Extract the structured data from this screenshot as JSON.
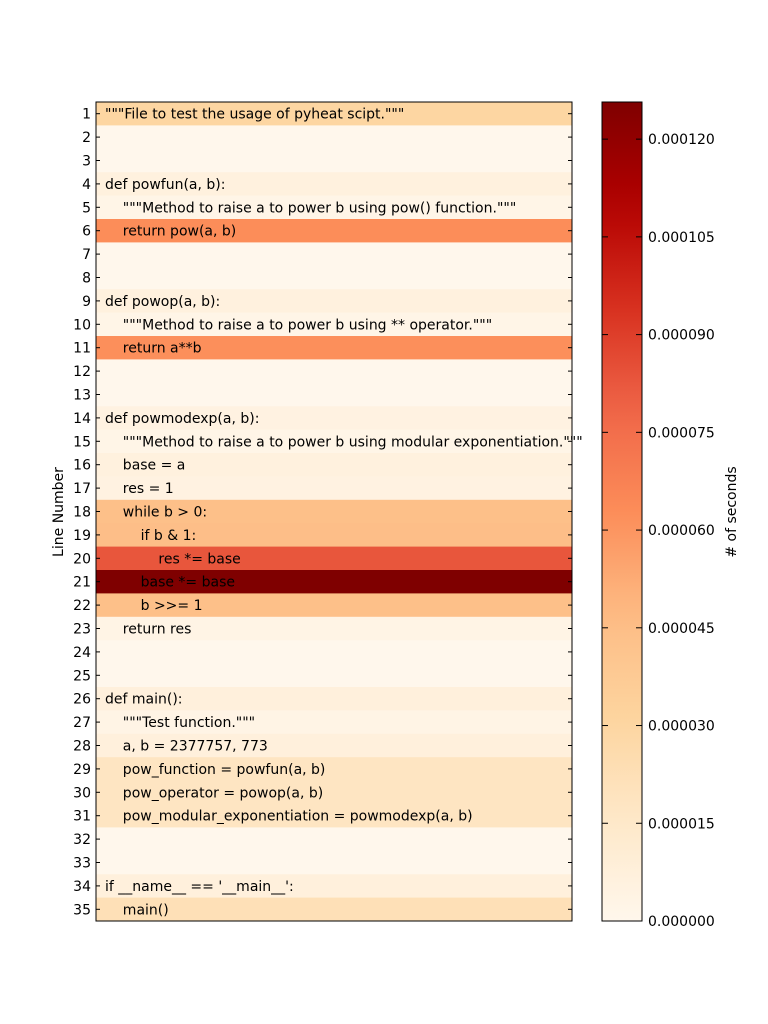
{
  "chart_data": {
    "type": "heatmap",
    "title": "",
    "ylabel": "Line Number",
    "colorbar_label": "# of seconds",
    "colormap": [
      "#fff7ec",
      "#fee8c8",
      "#fdd49e",
      "#fdbb84",
      "#fc8d59",
      "#ef6548",
      "#d7301f",
      "#b30000",
      "#7f0000"
    ],
    "clim": [
      0,
      0.0001257
    ],
    "colorbar_ticks": [
      "0.000000",
      "0.000015",
      "0.000030",
      "0.000045",
      "0.000060",
      "0.000075",
      "0.000090",
      "0.000105",
      "0.000120"
    ],
    "colorbar_tick_values": [
      0,
      1.5e-05,
      3e-05,
      4.5e-05,
      6e-05,
      7.5e-05,
      9e-05,
      0.000105,
      0.00012
    ],
    "rows": [
      {
        "line": 1,
        "code": "\"\"\"File to test the usage of pyheat scipt.\"\"\"",
        "value": 3e-05
      },
      {
        "line": 2,
        "code": "",
        "value": 0
      },
      {
        "line": 3,
        "code": "",
        "value": 0
      },
      {
        "line": 4,
        "code": "def powfun(a, b):",
        "value": 6e-06
      },
      {
        "line": 5,
        "code": "    \"\"\"Method to raise a to power b using pow() function.\"\"\"",
        "value": 2e-06
      },
      {
        "line": 6,
        "code": "    return pow(a, b)",
        "value": 6.3e-05
      },
      {
        "line": 7,
        "code": "",
        "value": 0
      },
      {
        "line": 8,
        "code": "",
        "value": 0
      },
      {
        "line": 9,
        "code": "def powop(a, b):",
        "value": 6e-06
      },
      {
        "line": 10,
        "code": "    \"\"\"Method to raise a to power b using ** operator.\"\"\"",
        "value": 2e-06
      },
      {
        "line": 11,
        "code": "    return a**b",
        "value": 6.2e-05
      },
      {
        "line": 12,
        "code": "",
        "value": 0
      },
      {
        "line": 13,
        "code": "",
        "value": 0
      },
      {
        "line": 14,
        "code": "def powmodexp(a, b):",
        "value": 5e-06
      },
      {
        "line": 15,
        "code": "    \"\"\"Method to raise a to power b using modular exponentiation.\"\"\"",
        "value": 2e-06
      },
      {
        "line": 16,
        "code": "    base = a",
        "value": 6e-06
      },
      {
        "line": 17,
        "code": "    res = 1",
        "value": 5e-06
      },
      {
        "line": 18,
        "code": "    while b > 0:",
        "value": 4.4e-05
      },
      {
        "line": 19,
        "code": "        if b & 1:",
        "value": 4.5e-05
      },
      {
        "line": 20,
        "code": "            res *= base",
        "value": 8.3e-05
      },
      {
        "line": 21,
        "code": "        base *= base",
        "value": 0.0001257
      },
      {
        "line": 22,
        "code": "        b >>= 1",
        "value": 4.4e-05
      },
      {
        "line": 23,
        "code": "    return res",
        "value": 3e-06
      },
      {
        "line": 24,
        "code": "",
        "value": 0
      },
      {
        "line": 25,
        "code": "",
        "value": 0
      },
      {
        "line": 26,
        "code": "def main():",
        "value": 7e-06
      },
      {
        "line": 27,
        "code": "    \"\"\"Test function.\"\"\"",
        "value": 3e-06
      },
      {
        "line": 28,
        "code": "    a, b = 2377757, 773",
        "value": 7e-06
      },
      {
        "line": 29,
        "code": "    pow_function = powfun(a, b)",
        "value": 1.8e-05
      },
      {
        "line": 30,
        "code": "    pow_operator = powop(a, b)",
        "value": 1.8e-05
      },
      {
        "line": 31,
        "code": "    pow_modular_exponentiation = powmodexp(a, b)",
        "value": 1.8e-05
      },
      {
        "line": 32,
        "code": "",
        "value": 0
      },
      {
        "line": 33,
        "code": "",
        "value": 0
      },
      {
        "line": 34,
        "code": "if __name__ == '__main__':",
        "value": 7e-06
      },
      {
        "line": 35,
        "code": "    main()",
        "value": 2.2e-05
      }
    ]
  }
}
